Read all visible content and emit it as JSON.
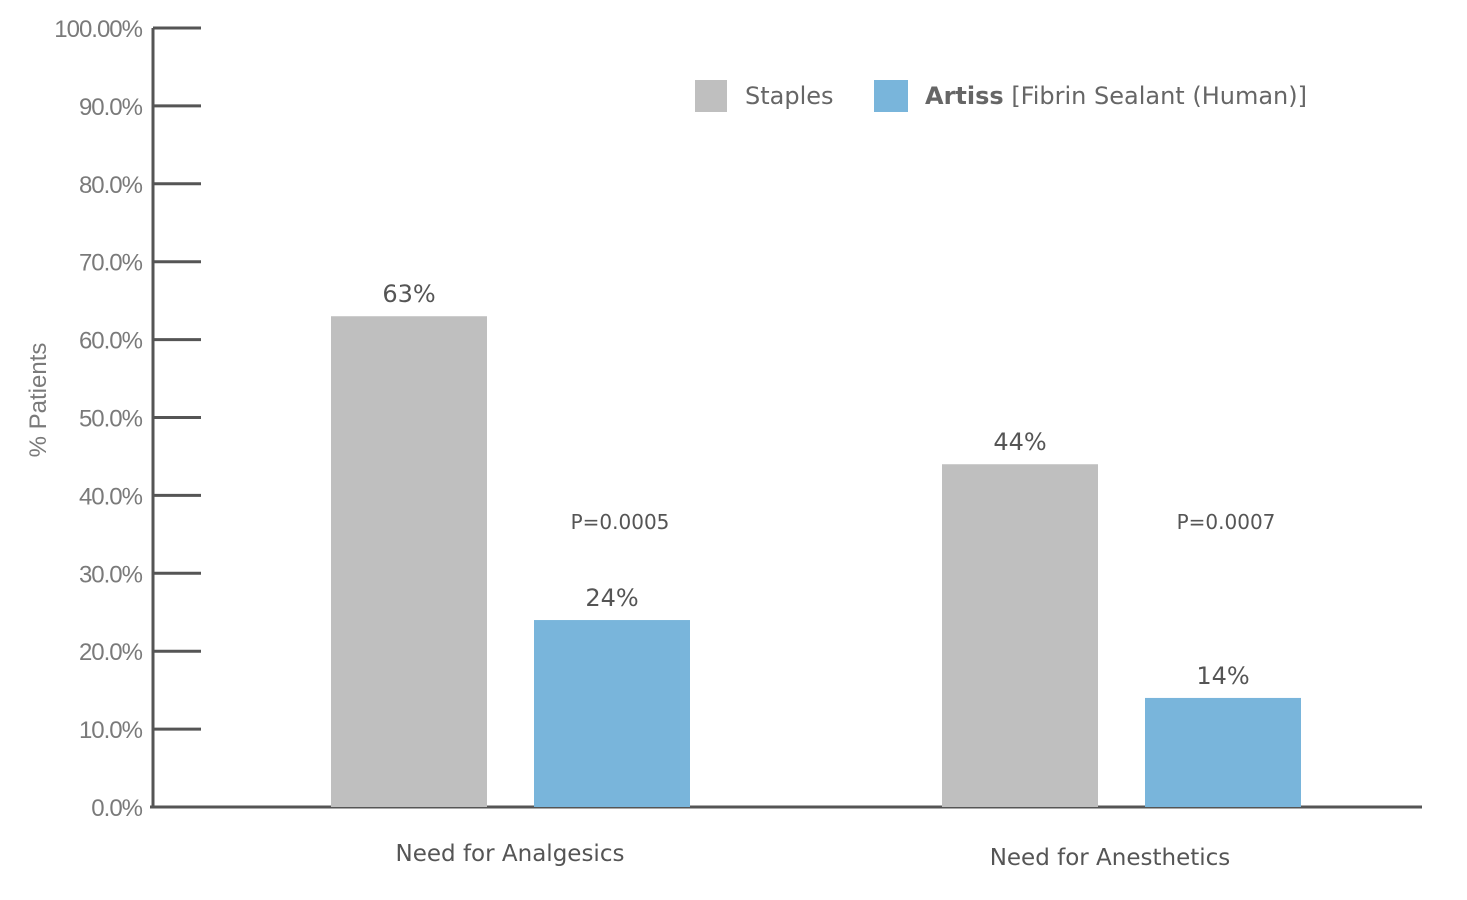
{
  "chart_data": {
    "type": "bar",
    "title": "",
    "xlabel": "",
    "ylabel": "% Patients",
    "ylim": [
      0,
      100
    ],
    "yticks": [
      "0.0%",
      "10.0%",
      "20.0%",
      "30.0%",
      "40.0%",
      "50.0%",
      "60.0%",
      "70.0%",
      "80.0%",
      "90.0%",
      "100.00%"
    ],
    "categories": [
      "Need for Analgesics",
      "Need for Anesthetics"
    ],
    "series": [
      {
        "name": "Staples",
        "values": [
          63,
          44
        ],
        "labels": [
          "63%",
          "44%"
        ],
        "color": "#bfbfbf"
      },
      {
        "name_bold": "Artiss",
        "name_rest": " [Fibrin Sealant (Human)]",
        "values": [
          24,
          14
        ],
        "labels": [
          "24%",
          "14%"
        ],
        "color": "#79b5db"
      }
    ],
    "annotations": [
      "P=0.0005",
      "P=0.0007"
    ],
    "legend_position": "top-right",
    "grid": false
  }
}
